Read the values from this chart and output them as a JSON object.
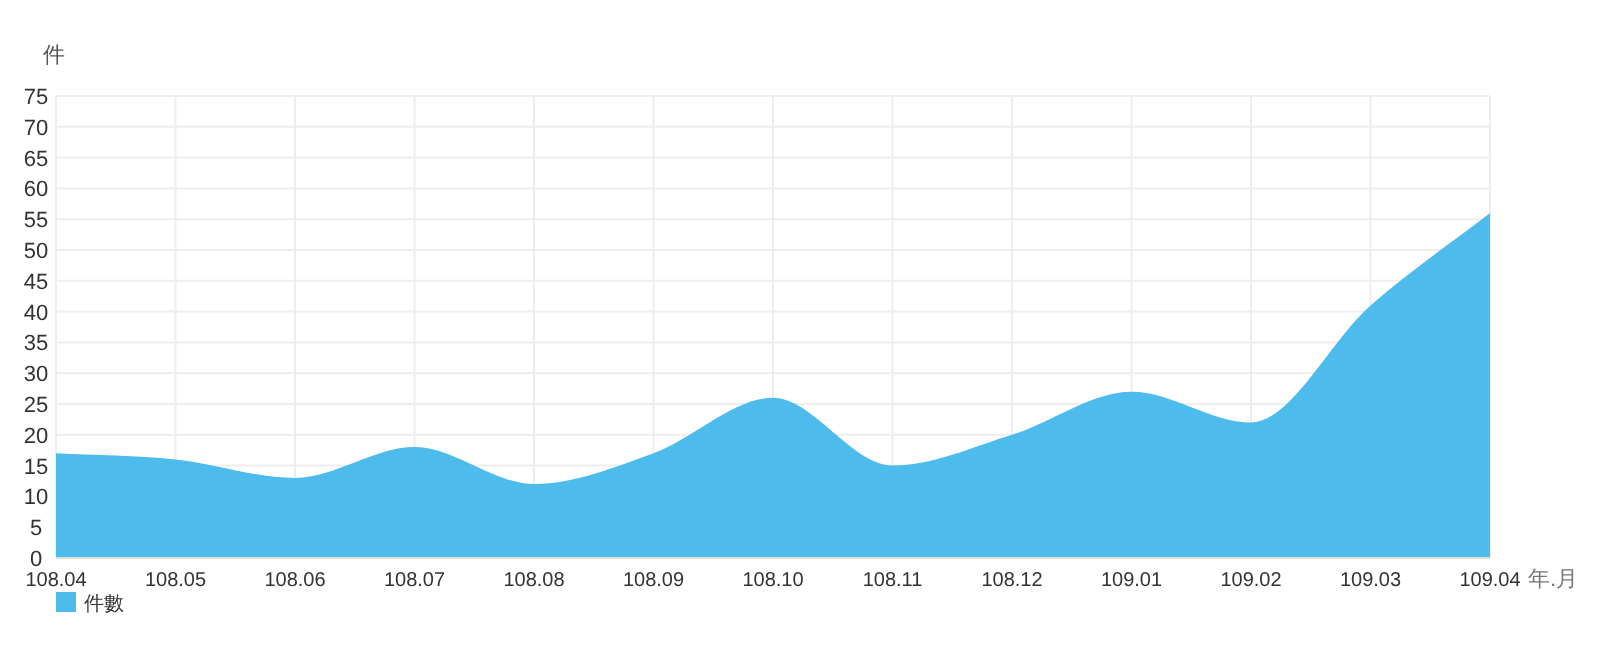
{
  "chart_data": {
    "type": "area",
    "ylabel": "件",
    "xlabel": "年.月",
    "categories": [
      "108.04",
      "108.05",
      "108.06",
      "108.07",
      "108.08",
      "108.09",
      "108.10",
      "108.11",
      "108.12",
      "109.01",
      "109.02",
      "109.03",
      "109.04"
    ],
    "series": [
      {
        "name": "件數",
        "color": "#4dbbec",
        "values": [
          17,
          16,
          13,
          18,
          12,
          17,
          26,
          15,
          20,
          27,
          22,
          41,
          56
        ]
      }
    ],
    "ylim": [
      0,
      75
    ],
    "yticks": [
      0,
      5,
      10,
      15,
      20,
      25,
      30,
      35,
      40,
      45,
      50,
      55,
      60,
      65,
      70,
      75
    ],
    "grid": true,
    "legend": "bottom left"
  }
}
